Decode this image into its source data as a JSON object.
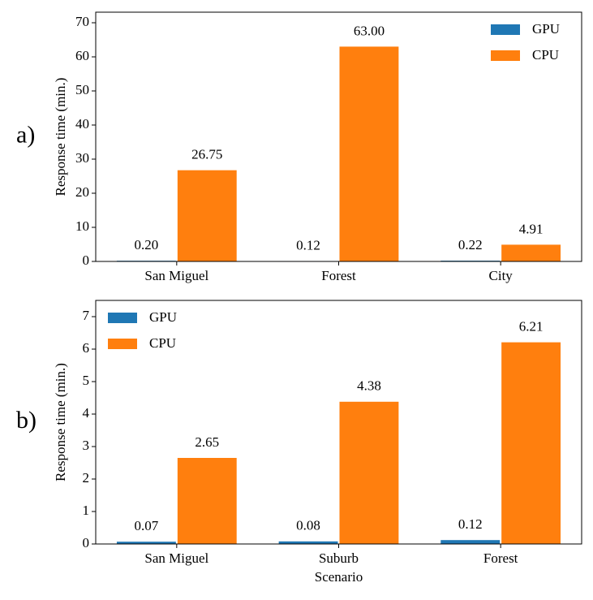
{
  "chart_data": [
    {
      "type": "bar",
      "panel_label": "a)",
      "ylabel": "Response time (min.)",
      "categories": [
        "San Miguel",
        "Forest",
        "City"
      ],
      "series": [
        {
          "name": "GPU",
          "color": "#1f77b4",
          "values": [
            0.2,
            0.12,
            0.22
          ],
          "value_labels": [
            "0.20",
            "0.12",
            "0.22"
          ]
        },
        {
          "name": "CPU",
          "color": "#ff7f0e",
          "values": [
            26.75,
            63,
            4.91
          ],
          "value_labels": [
            "26.75",
            "63.00",
            "4.91"
          ]
        }
      ],
      "ylim": [
        0,
        73.1
      ],
      "yticks": [
        0,
        10,
        20,
        30,
        40,
        50,
        60,
        70
      ],
      "legend": "upper right"
    },
    {
      "type": "bar",
      "panel_label": "b)",
      "ylabel": "Response time (min.)",
      "xlabel": "Scenario",
      "categories": [
        "San Miguel",
        "Suburb",
        "Forest"
      ],
      "series": [
        {
          "name": "GPU",
          "color": "#1f77b4",
          "values": [
            0.07,
            0.08,
            0.12
          ],
          "value_labels": [
            "0.07",
            "0.08",
            "0.12"
          ]
        },
        {
          "name": "CPU",
          "color": "#ff7f0e",
          "values": [
            2.65,
            4.38,
            6.21
          ],
          "value_labels": [
            "2.65",
            "4.38",
            "6.21"
          ]
        }
      ],
      "ylim": [
        0,
        7.5
      ],
      "yticks": [
        0,
        1,
        2,
        3,
        4,
        5,
        6,
        7
      ],
      "legend": "upper left"
    }
  ]
}
